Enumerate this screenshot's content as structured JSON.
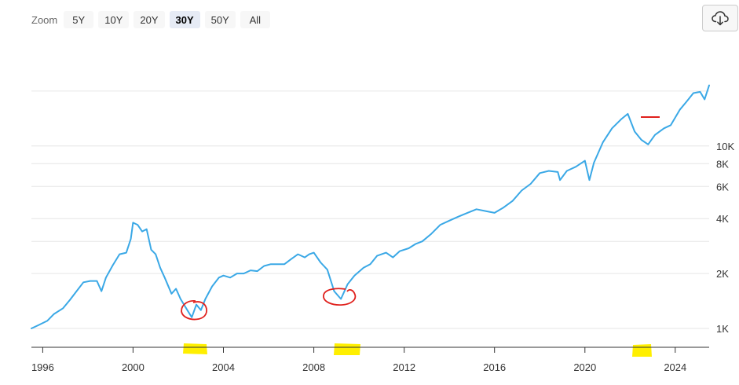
{
  "toolbar": {
    "zoom_label": "Zoom",
    "zoom_options": [
      "5Y",
      "10Y",
      "20Y",
      "30Y",
      "50Y",
      "All"
    ],
    "active_zoom": "30Y"
  },
  "colors": {
    "line": "#3aa8e6",
    "annotation_red": "#e0201c",
    "annotation_yellow": "#ffef00",
    "grid": "#e6e6e6"
  },
  "chart_data": {
    "type": "line",
    "title": "",
    "xlabel": "",
    "ylabel": "",
    "y_scale": "log",
    "xlim": [
      1995.5,
      2025.5
    ],
    "ylim": [
      750,
      30000
    ],
    "grid": "horizontal",
    "x_ticks": [
      {
        "value": 1996,
        "label": "1996"
      },
      {
        "value": 2000,
        "label": "2000"
      },
      {
        "value": 2004,
        "label": "2004"
      },
      {
        "value": 2008,
        "label": "2008"
      },
      {
        "value": 2012,
        "label": "2012"
      },
      {
        "value": 2016,
        "label": "2016"
      },
      {
        "value": 2020,
        "label": "2020"
      },
      {
        "value": 2024,
        "label": "2024"
      }
    ],
    "y_ticks": [
      {
        "value": 1000,
        "label": "1K"
      },
      {
        "value": 2000,
        "label": "2K"
      },
      {
        "value": 4000,
        "label": "4K"
      },
      {
        "value": 6000,
        "label": "6K"
      },
      {
        "value": 8000,
        "label": "8K"
      },
      {
        "value": 10000,
        "label": "10K"
      }
    ],
    "extra_gridlines": [
      3000,
      20000
    ],
    "series": [
      {
        "name": "",
        "x": [
          1995.5,
          1995.8,
          1996.2,
          1996.5,
          1996.9,
          1997.2,
          1997.5,
          1997.8,
          1998.1,
          1998.4,
          1998.6,
          1998.8,
          1999.1,
          1999.4,
          1999.7,
          1999.9,
          2000.0,
          2000.2,
          2000.4,
          2000.6,
          2000.8,
          2001.0,
          2001.2,
          2001.4,
          2001.7,
          2001.9,
          2002.1,
          2002.4,
          2002.6,
          2002.8,
          2003.0,
          2003.2,
          2003.5,
          2003.8,
          2004.0,
          2004.3,
          2004.6,
          2004.9,
          2005.2,
          2005.5,
          2005.8,
          2006.1,
          2006.4,
          2006.7,
          2007.0,
          2007.3,
          2007.6,
          2007.8,
          2008.0,
          2008.3,
          2008.6,
          2008.9,
          2009.2,
          2009.5,
          2009.8,
          2010.2,
          2010.5,
          2010.8,
          2011.2,
          2011.5,
          2011.8,
          2012.2,
          2012.5,
          2012.8,
          2013.2,
          2013.6,
          2014.0,
          2014.4,
          2014.8,
          2015.2,
          2015.6,
          2016.0,
          2016.4,
          2016.8,
          2017.2,
          2017.6,
          2018.0,
          2018.4,
          2018.8,
          2018.9,
          2019.2,
          2019.6,
          2020.0,
          2020.2,
          2020.4,
          2020.8,
          2021.2,
          2021.6,
          2021.9,
          2022.2,
          2022.5,
          2022.8,
          2023.1,
          2023.5,
          2023.8,
          2024.2,
          2024.5,
          2024.8,
          2025.1,
          2025.3,
          2025.5
        ],
        "values": [
          1000,
          1040,
          1100,
          1200,
          1290,
          1430,
          1600,
          1790,
          1820,
          1820,
          1600,
          1900,
          2220,
          2550,
          2600,
          3100,
          3800,
          3700,
          3400,
          3500,
          2700,
          2550,
          2150,
          1900,
          1550,
          1650,
          1450,
          1260,
          1150,
          1350,
          1260,
          1450,
          1700,
          1900,
          1950,
          1900,
          2000,
          2000,
          2080,
          2060,
          2200,
          2250,
          2250,
          2250,
          2400,
          2550,
          2450,
          2550,
          2600,
          2300,
          2100,
          1600,
          1450,
          1750,
          1950,
          2150,
          2250,
          2500,
          2600,
          2450,
          2650,
          2750,
          2900,
          3000,
          3300,
          3700,
          3900,
          4100,
          4300,
          4500,
          4400,
          4300,
          4600,
          5000,
          5700,
          6200,
          7100,
          7300,
          7200,
          6500,
          7300,
          7700,
          8300,
          6500,
          8100,
          10500,
          12500,
          14000,
          15000,
          12000,
          10800,
          10200,
          11500,
          12500,
          13000,
          15800,
          17500,
          19500,
          19800,
          18000,
          21500
        ]
      }
    ]
  }
}
